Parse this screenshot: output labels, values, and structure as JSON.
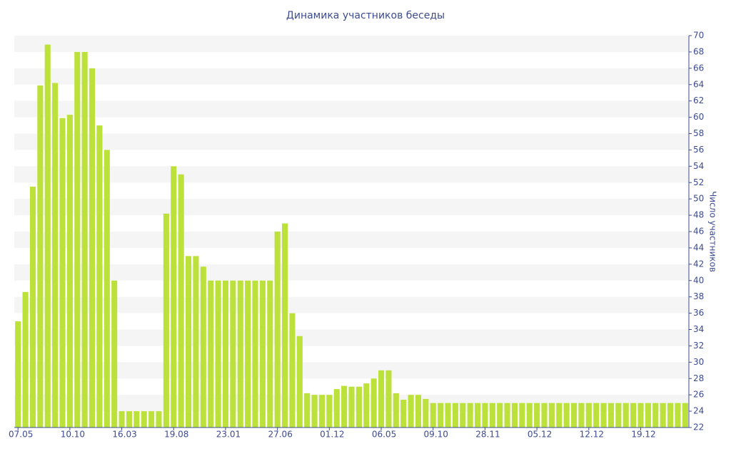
{
  "chart_data": {
    "type": "bar",
    "title": "Динамика участников беседы",
    "y_axis_label": "Число участников",
    "categories": [
      "07.05",
      null,
      null,
      null,
      null,
      null,
      null,
      "10.10",
      null,
      null,
      null,
      null,
      null,
      null,
      "16.03",
      null,
      null,
      null,
      null,
      null,
      null,
      "19.08",
      null,
      null,
      null,
      null,
      null,
      null,
      "23.01",
      null,
      null,
      null,
      null,
      null,
      null,
      "27.06",
      null,
      null,
      null,
      null,
      null,
      null,
      "01.12",
      null,
      null,
      null,
      null,
      null,
      null,
      "06.05",
      null,
      null,
      null,
      null,
      null,
      null,
      "09.10",
      null,
      null,
      null,
      null,
      null,
      null,
      "28.11",
      null,
      null,
      null,
      null,
      null,
      null,
      "05.12",
      null,
      null,
      null,
      null,
      null,
      null,
      "12.12",
      null,
      null,
      null,
      null,
      null,
      null,
      "19.12",
      null,
      null,
      null,
      null,
      null,
      null
    ],
    "values": [
      35,
      38.6,
      51.5,
      63.9,
      68.9,
      64.2,
      59.9,
      60.3,
      68,
      68,
      66,
      59,
      56,
      40,
      24,
      24,
      24,
      24,
      24,
      24,
      48.2,
      54,
      53,
      43,
      43,
      41.7,
      40,
      40,
      40,
      40,
      40,
      40,
      40,
      40,
      40,
      46,
      47,
      36,
      33.2,
      26.2,
      26,
      26,
      26,
      26.7,
      27.1,
      27,
      27,
      27.4,
      28,
      29,
      29,
      26.2,
      25.4,
      26,
      26,
      25.5,
      25,
      25,
      25,
      25,
      25,
      25,
      25,
      25,
      25,
      25,
      25,
      25,
      25,
      25,
      25,
      25,
      25,
      25,
      25,
      25,
      25,
      25,
      25,
      25,
      25,
      25,
      25,
      25,
      25,
      25,
      25,
      25,
      25,
      25,
      25
    ],
    "color": "#bce13a",
    "ylim": [
      22,
      70
    ],
    "yticks": [
      22,
      24,
      26,
      28,
      30,
      32,
      34,
      36,
      38,
      40,
      42,
      44,
      46,
      48,
      50,
      52,
      54,
      56,
      58,
      60,
      62,
      64,
      66,
      68,
      70
    ],
    "grid": true,
    "y_axis_side": "right"
  }
}
